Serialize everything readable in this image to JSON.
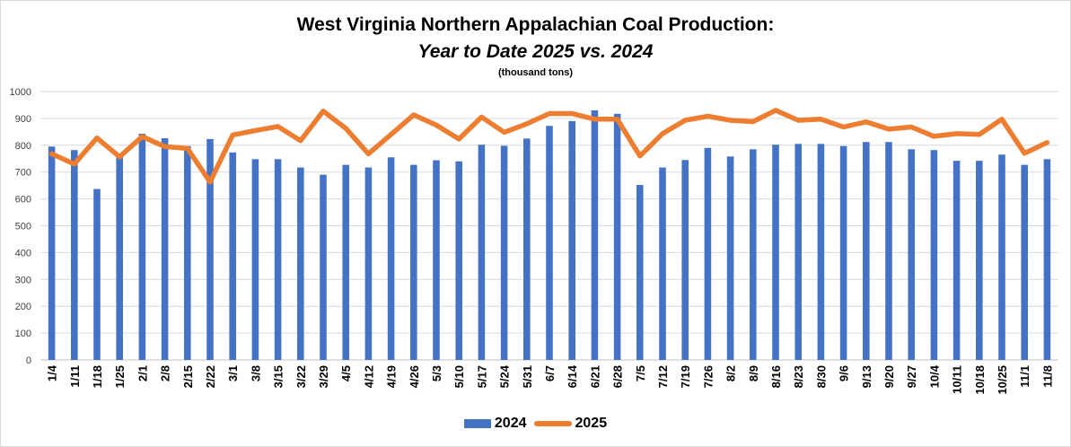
{
  "colors": {
    "series2024": "#4472c4",
    "series2025": "#ed7d31",
    "grid": "#d9d9d9"
  },
  "chart_data": {
    "type": "bar",
    "title": "West Virginia Northern Appalachian Coal Production:",
    "subtitle": "Year to Date 2025 vs. 2024",
    "units": "(thousand tons)",
    "xlabel": "",
    "ylabel": "",
    "ylim": [
      0,
      1000
    ],
    "yticks": [
      0,
      100,
      200,
      300,
      400,
      500,
      600,
      700,
      800,
      900,
      1000
    ],
    "grid": true,
    "legend_position": "bottom",
    "categories": [
      "1/4",
      "1/11",
      "1/18",
      "1/25",
      "2/1",
      "2/8",
      "2/15",
      "2/22",
      "3/1",
      "3/8",
      "3/15",
      "3/22",
      "3/29",
      "4/5",
      "4/12",
      "4/19",
      "4/26",
      "5/3",
      "5/10",
      "5/17",
      "5/24",
      "5/31",
      "6/7",
      "6/14",
      "6/21",
      "6/28",
      "7/5",
      "7/12",
      "7/19",
      "7/26",
      "8/2",
      "8/9",
      "8/16",
      "8/23",
      "8/30",
      "9/6",
      "9/13",
      "9/20",
      "9/27",
      "10/4",
      "10/11",
      "10/18",
      "10/25",
      "11/1",
      "11/8"
    ],
    "series": [
      {
        "name": "2024",
        "type": "bar",
        "values": [
          795,
          782,
          637,
          768,
          843,
          826,
          797,
          823,
          773,
          748,
          748,
          717,
          690,
          727,
          717,
          755,
          727,
          744,
          740,
          802,
          798,
          825,
          872,
          890,
          930,
          917,
          652,
          717,
          745,
          790,
          758,
          785,
          802,
          805,
          805,
          797,
          812,
          812,
          785,
          782,
          742,
          742,
          765,
          727,
          748
        ]
      },
      {
        "name": "2025",
        "type": "line",
        "values": [
          768,
          730,
          827,
          757,
          832,
          795,
          788,
          663,
          838,
          855,
          870,
          817,
          927,
          863,
          768,
          840,
          913,
          875,
          823,
          905,
          848,
          880,
          918,
          918,
          897,
          897,
          760,
          843,
          893,
          908,
          893,
          888,
          930,
          893,
          897,
          868,
          887,
          860,
          868,
          833,
          843,
          840,
          897,
          770,
          810
        ]
      }
    ]
  }
}
